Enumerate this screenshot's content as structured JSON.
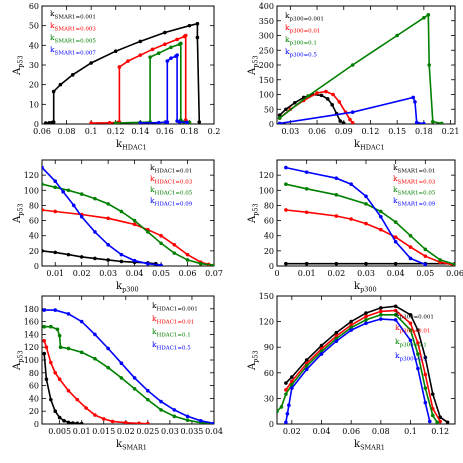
{
  "chart_data": [
    {
      "type": "line",
      "xlabel": {
        "main": "k",
        "sub": "HDAC1"
      },
      "ylabel": {
        "main": "A",
        "sub": "p53"
      },
      "xlim": [
        0.06,
        0.2
      ],
      "ylim": [
        0,
        60
      ],
      "xticks": [
        0.06,
        0.08,
        0.1,
        0.12,
        0.14,
        0.16,
        0.18,
        0.2
      ],
      "xtick_labels": [
        "0.06",
        "0.08",
        "0.1",
        "0.12",
        "0.14",
        "0.16",
        "0.18",
        "0.2"
      ],
      "yticks": [
        0,
        10,
        20,
        30,
        40,
        50,
        60
      ],
      "ytick_labels": [
        "0",
        "10",
        "20",
        "30",
        "40",
        "50",
        "60"
      ],
      "legend_position": "top-left",
      "series": [
        {
          "name": {
            "main": "k",
            "sub": "SMAR1=0.001"
          },
          "color": "#000000",
          "x": [
            0.063,
            0.066,
            0.0685,
            0.0695,
            0.0695,
            0.075,
            0.085,
            0.1,
            0.12,
            0.14,
            0.16,
            0.18,
            0.1865,
            0.1865,
            0.188
          ],
          "y": [
            0.5,
            0.6,
            0.8,
            1.0,
            16.5,
            20,
            25,
            31,
            37,
            42,
            46.5,
            50,
            51,
            44,
            1
          ]
        },
        {
          "name": {
            "main": "k",
            "sub": "SMAR1=0.003"
          },
          "color": "#ff0000",
          "x": [
            0.1,
            0.115,
            0.122,
            0.123,
            0.123,
            0.13,
            0.14,
            0.15,
            0.16,
            0.17,
            0.176,
            0.177,
            0.177,
            0.178,
            0.18
          ],
          "y": [
            0.5,
            0.6,
            0.8,
            1.0,
            29,
            32,
            35,
            38,
            40.5,
            43,
            44.5,
            45,
            2,
            1,
            0.8
          ]
        },
        {
          "name": {
            "main": "k",
            "sub": "SMAR1=0.005"
          },
          "color": "#008000",
          "x": [
            0.12,
            0.14,
            0.148,
            0.148,
            0.155,
            0.165,
            0.172,
            0.173,
            0.173,
            0.175,
            0.18
          ],
          "y": [
            0.5,
            0.8,
            1.0,
            34,
            36,
            39,
            40.5,
            41,
            2,
            1,
            0.8
          ]
        },
        {
          "name": {
            "main": "k",
            "sub": "SMAR1=0.007"
          },
          "color": "#0000ff",
          "x": [
            0.14,
            0.155,
            0.161,
            0.162,
            0.162,
            0.165,
            0.169,
            0.17,
            0.17,
            0.172,
            0.178
          ],
          "y": [
            0.5,
            0.7,
            0.9,
            1.0,
            32,
            33.5,
            34.5,
            35,
            1.5,
            1,
            0.8
          ]
        }
      ]
    },
    {
      "type": "line",
      "xlabel": {
        "main": "k",
        "sub": "HDAC1"
      },
      "ylabel": {
        "main": "A",
        "sub": "p53"
      },
      "xlim": [
        0.015,
        0.215
      ],
      "ylim": [
        0,
        400
      ],
      "xticks": [
        0.03,
        0.06,
        0.09,
        0.12,
        0.15,
        0.18,
        0.21
      ],
      "xtick_labels": [
        "0.03",
        "0.06",
        "0.09",
        "0.12",
        "0.15",
        "0.18",
        "0.21"
      ],
      "yticks": [
        0,
        50,
        100,
        150,
        200,
        250,
        300,
        350,
        400
      ],
      "ytick_labels": [
        "0",
        "50",
        "100",
        "150",
        "200",
        "250",
        "300",
        "350",
        "400"
      ],
      "legend_position": "top-left",
      "series": [
        {
          "name": {
            "main": "k",
            "sub": "p300=0.001"
          },
          "color": "#000000",
          "x": [
            0.018,
            0.025,
            0.035,
            0.045,
            0.055,
            0.065,
            0.072,
            0.077,
            0.082,
            0.086,
            0.09
          ],
          "y": [
            30,
            50,
            72,
            90,
            100,
            97,
            85,
            65,
            35,
            10,
            3
          ]
        },
        {
          "name": {
            "main": "k",
            "sub": "p300=0.01"
          },
          "color": "#ff0000",
          "x": [
            0.018,
            0.03,
            0.045,
            0.06,
            0.07,
            0.078,
            0.085,
            0.092,
            0.097,
            0.1
          ],
          "y": [
            20,
            50,
            80,
            105,
            110,
            100,
            75,
            40,
            15,
            4
          ]
        },
        {
          "name": {
            "main": "k",
            "sub": "p300=0.1"
          },
          "color": "#008000",
          "x": [
            0.018,
            0.05,
            0.1,
            0.15,
            0.18,
            0.185,
            0.186,
            0.19,
            0.2
          ],
          "y": [
            20,
            95,
            200,
            300,
            360,
            370,
            200,
            8,
            2
          ]
        },
        {
          "name": {
            "main": "k",
            "sub": "p300=0.5"
          },
          "color": "#0000ff",
          "x": [
            0.018,
            0.1,
            0.168,
            0.17,
            0.172,
            0.18
          ],
          "y": [
            2,
            40,
            90,
            75,
            5,
            1
          ]
        }
      ]
    },
    {
      "type": "line",
      "xlabel": {
        "main": "k",
        "sub": "p300"
      },
      "ylabel": {
        "main": "A",
        "sub": "p53"
      },
      "xlim": [
        0.005,
        0.07
      ],
      "ylim": [
        0,
        140
      ],
      "xticks": [
        0.01,
        0.02,
        0.03,
        0.04,
        0.05,
        0.06,
        0.07
      ],
      "xtick_labels": [
        "0.01",
        "0.02",
        "0.03",
        "0.04",
        "0.05",
        "0.06",
        "0.07"
      ],
      "yticks": [
        0,
        20,
        40,
        60,
        80,
        100,
        120
      ],
      "ytick_labels": [
        "0",
        "20",
        "40",
        "60",
        "80",
        "100",
        "120"
      ],
      "legend_position": "top-right",
      "series": [
        {
          "name": {
            "main": "k",
            "sub": "HDAC1=0.01"
          },
          "color": "#000000",
          "x": [
            0.005,
            0.01,
            0.015,
            0.02,
            0.025,
            0.03,
            0.035,
            0.04,
            0.045,
            0.048,
            0.05
          ],
          "y": [
            20,
            18,
            15,
            12,
            10,
            8,
            6,
            5,
            4,
            3,
            0
          ]
        },
        {
          "name": {
            "main": "k",
            "sub": "HDAC1=0.03"
          },
          "color": "#ff0000",
          "x": [
            0.005,
            0.01,
            0.02,
            0.03,
            0.04,
            0.045,
            0.05,
            0.055,
            0.06,
            0.065,
            0.068,
            0.07
          ],
          "y": [
            74,
            72,
            68,
            63,
            55,
            48,
            40,
            28,
            15,
            5,
            2,
            1
          ]
        },
        {
          "name": {
            "main": "k",
            "sub": "HDAC1=0.05"
          },
          "color": "#008000",
          "x": [
            0.005,
            0.01,
            0.015,
            0.02,
            0.025,
            0.03,
            0.035,
            0.04,
            0.045,
            0.05,
            0.055,
            0.06,
            0.065,
            0.07
          ],
          "y": [
            108,
            104,
            100,
            95,
            89,
            82,
            72,
            60,
            45,
            30,
            17,
            8,
            3,
            1
          ]
        },
        {
          "name": {
            "main": "k",
            "sub": "HDAC1=0.09"
          },
          "color": "#0000ff",
          "x": [
            0.005,
            0.01,
            0.013,
            0.017,
            0.02,
            0.025,
            0.03,
            0.035,
            0.04,
            0.045,
            0.05
          ],
          "y": [
            130,
            112,
            98,
            80,
            65,
            45,
            28,
            15,
            7,
            3,
            1
          ]
        }
      ]
    },
    {
      "type": "line",
      "xlabel": {
        "main": "k",
        "sub": "p300"
      },
      "ylabel": {
        "main": "A",
        "sub": "p53"
      },
      "xlim": [
        0.0,
        0.06
      ],
      "ylim": [
        0,
        140
      ],
      "xticks": [
        0,
        0.01,
        0.02,
        0.03,
        0.04,
        0.05,
        0.06
      ],
      "xtick_labels": [
        "0",
        "0.01",
        "0.02",
        "0.03",
        "0.04",
        "0.05",
        "0.06"
      ],
      "yticks": [
        0,
        20,
        40,
        60,
        80,
        100,
        120
      ],
      "ytick_labels": [
        "0",
        "20",
        "40",
        "60",
        "80",
        "100",
        "120"
      ],
      "legend_position": "top-right",
      "series": [
        {
          "name": {
            "main": "k",
            "sub": "SMAR1=0.01"
          },
          "color": "#000000",
          "x": [
            0.003,
            0.01,
            0.02,
            0.03,
            0.04,
            0.05,
            0.06
          ],
          "y": [
            3,
            3,
            3,
            3,
            3,
            3,
            3
          ]
        },
        {
          "name": {
            "main": "k",
            "sub": "SMAR1=0.03"
          },
          "color": "#ff0000",
          "x": [
            0.003,
            0.01,
            0.02,
            0.025,
            0.03,
            0.035,
            0.04,
            0.045,
            0.05,
            0.055,
            0.06
          ],
          "y": [
            74,
            71,
            66,
            62,
            56,
            48,
            38,
            25,
            13,
            5,
            1
          ]
        },
        {
          "name": {
            "main": "k",
            "sub": "SMAR1=0.05"
          },
          "color": "#008000",
          "x": [
            0.003,
            0.01,
            0.02,
            0.03,
            0.035,
            0.04,
            0.045,
            0.05,
            0.055,
            0.06
          ],
          "y": [
            108,
            102,
            94,
            82,
            72,
            58,
            40,
            22,
            8,
            2
          ]
        },
        {
          "name": {
            "main": "k",
            "sub": "SMAR1=0.09"
          },
          "color": "#0000ff",
          "x": [
            0.003,
            0.01,
            0.02,
            0.025,
            0.03,
            0.035,
            0.04,
            0.045,
            0.05
          ],
          "y": [
            130,
            124,
            116,
            108,
            92,
            65,
            32,
            10,
            2
          ]
        }
      ]
    },
    {
      "type": "line",
      "xlabel": {
        "main": "k",
        "sub": "SMAR1"
      },
      "ylabel": {
        "main": "A",
        "sub": "p53"
      },
      "xlim": [
        0.001,
        0.04
      ],
      "ylim": [
        0,
        200
      ],
      "xticks": [
        0.005,
        0.01,
        0.015,
        0.02,
        0.025,
        0.03,
        0.035,
        0.04
      ],
      "xtick_labels": [
        "0.005",
        "0.01",
        "0.015",
        "0.02",
        "0.025",
        "0.03",
        "0.035",
        "0.04"
      ],
      "yticks": [
        0,
        20,
        40,
        60,
        80,
        100,
        120,
        140,
        160,
        180
      ],
      "ytick_labels": [
        "0",
        "20",
        "40",
        "60",
        "80",
        "100",
        "120",
        "140",
        "160",
        "180"
      ],
      "legend_position": "top-right",
      "series": [
        {
          "name": {
            "main": "k",
            "sub": "HDAC1=0.001"
          },
          "color": "#000000",
          "x": [
            0.0015,
            0.002,
            0.003,
            0.004,
            0.005,
            0.006,
            0.007,
            0.008,
            0.009,
            0.01
          ],
          "y": [
            110,
            70,
            38,
            20,
            10,
            5,
            2.5,
            1.5,
            1,
            0.5
          ]
        },
        {
          "name": {
            "main": "k",
            "sub": "HDAC1=0.01"
          },
          "color": "#ff0000",
          "x": [
            0.0015,
            0.002,
            0.003,
            0.004,
            0.005,
            0.007,
            0.009,
            0.011,
            0.013,
            0.015,
            0.017,
            0.02,
            0.023,
            0.025
          ],
          "y": [
            130,
            120,
            96,
            80,
            70,
            52,
            38,
            25,
            14,
            8,
            4,
            2,
            1,
            0.5
          ]
        },
        {
          "name": {
            "main": "k",
            "sub": "HDAC1=0.1"
          },
          "color": "#008000",
          "x": [
            0.0015,
            0.003,
            0.0045,
            0.005,
            0.0052,
            0.007,
            0.01,
            0.013,
            0.016,
            0.019,
            0.022,
            0.025,
            0.028,
            0.031,
            0.034,
            0.037,
            0.04
          ],
          "y": [
            152,
            152,
            148,
            138,
            120,
            118,
            112,
            102,
            88,
            72,
            55,
            38,
            22,
            12,
            6,
            2,
            1
          ]
        },
        {
          "name": {
            "main": "k",
            "sub": "HDAC1=0.5"
          },
          "color": "#0000ff",
          "x": [
            0.0015,
            0.004,
            0.007,
            0.01,
            0.013,
            0.016,
            0.019,
            0.022,
            0.025,
            0.028,
            0.031,
            0.034,
            0.037,
            0.04
          ],
          "y": [
            178,
            178,
            172,
            160,
            140,
            118,
            95,
            72,
            52,
            35,
            22,
            12,
            5,
            1
          ]
        }
      ]
    },
    {
      "type": "line",
      "xlabel": {
        "main": "k",
        "sub": "SMAR1"
      },
      "ylabel": {
        "main": "A",
        "sub": "p53"
      },
      "xlim": [
        0.01,
        0.13
      ],
      "ylim": [
        0,
        150
      ],
      "xticks": [
        0.02,
        0.04,
        0.06,
        0.08,
        0.1,
        0.12
      ],
      "xtick_labels": [
        "0.02",
        "0.04",
        "0.06",
        "0.08",
        "0.1",
        "0.12"
      ],
      "yticks": [
        0,
        30,
        60,
        90,
        120,
        150
      ],
      "ytick_labels": [
        "0",
        "30",
        "60",
        "90",
        "120",
        "150"
      ],
      "legend_position": "top-right",
      "series": [
        {
          "name": {
            "main": "k",
            "sub": "p300=0.001"
          },
          "color": "#000000",
          "x": [
            0.016,
            0.02,
            0.03,
            0.04,
            0.05,
            0.06,
            0.07,
            0.08,
            0.09,
            0.1,
            0.105,
            0.11,
            0.115,
            0.12,
            0.125
          ],
          "y": [
            48,
            55,
            75,
            92,
            107,
            120,
            130,
            136,
            138,
            128,
            110,
            78,
            35,
            8,
            2
          ]
        },
        {
          "name": {
            "main": "k",
            "sub": "p300=0.01"
          },
          "color": "#ff0000",
          "x": [
            0.016,
            0.02,
            0.03,
            0.04,
            0.05,
            0.06,
            0.07,
            0.08,
            0.09,
            0.1,
            0.105,
            0.11,
            0.115,
            0.12
          ],
          "y": [
            40,
            50,
            71,
            88,
            103,
            116,
            126,
            132,
            133,
            118,
            95,
            58,
            18,
            3
          ]
        },
        {
          "name": {
            "main": "k",
            "sub": "p300=0.1"
          },
          "color": "#008000",
          "x": [
            0.01,
            0.013,
            0.016,
            0.02,
            0.03,
            0.04,
            0.05,
            0.06,
            0.07,
            0.08,
            0.09,
            0.1,
            0.105,
            0.11,
            0.115,
            0.118
          ],
          "y": [
            15,
            20,
            35,
            46,
            68,
            85,
            100,
            113,
            122,
            128,
            128,
            110,
            82,
            42,
            10,
            2
          ]
        },
        {
          "name": {
            "main": "k",
            "sub": "p300=0.5"
          },
          "color": "#0000ff",
          "x": [
            0.016,
            0.017,
            0.018,
            0.02,
            0.03,
            0.04,
            0.05,
            0.06,
            0.07,
            0.08,
            0.09,
            0.1,
            0.105,
            0.11,
            0.113
          ],
          "y": [
            2,
            12,
            22,
            42,
            64,
            82,
            97,
            110,
            118,
            123,
            122,
            98,
            65,
            25,
            3
          ]
        }
      ]
    }
  ]
}
